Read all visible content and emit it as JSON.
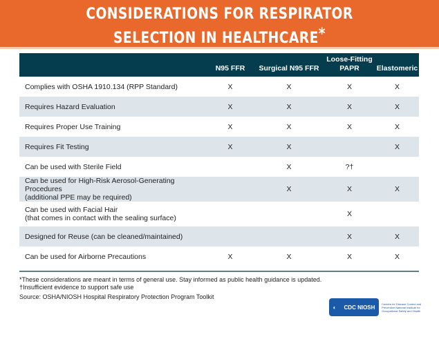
{
  "title": {
    "line1": "CONSIDERATIONS FOR RESPIRATOR",
    "line2": "SELECTION IN HEALTHCARE",
    "mark": "*"
  },
  "columns": [
    "",
    "N95 FFR",
    "Surgical N95 FFR",
    "Loose-Fitting PAPR",
    "Elastomeric"
  ],
  "rows": [
    {
      "label": "Complies with OSHA 1910.134 (RPP Standard)",
      "values": [
        "X",
        "X",
        "X",
        "X"
      ]
    },
    {
      "label": "Requires Hazard Evaluation",
      "values": [
        "X",
        "X",
        "X",
        "X"
      ]
    },
    {
      "label": "Requires Proper Use Training",
      "values": [
        "X",
        "X",
        "X",
        "X"
      ]
    },
    {
      "label": "Requires Fit Testing",
      "values": [
        "X",
        "X",
        "",
        "X"
      ]
    },
    {
      "label": "Can be used with Sterile Field",
      "values": [
        "",
        "X",
        "?†",
        ""
      ]
    },
    {
      "label": "Can be used for High-Risk Aerosol-Generating Procedures",
      "label2": "(additional PPE may be required)",
      "values": [
        "",
        "X",
        "X",
        "X"
      ]
    },
    {
      "label": "Can be used with Facial Hair",
      "label2": "(that comes in contact with the sealing surface)",
      "values": [
        "",
        "",
        "X",
        ""
      ]
    },
    {
      "label": "Designed for Reuse (can be cleaned/maintained)",
      "values": [
        "",
        "",
        "X",
        "X"
      ]
    },
    {
      "label": "Can be used for Airborne Precautions",
      "values": [
        "X",
        "X",
        "X",
        "X"
      ]
    }
  ],
  "footnotes": {
    "note1": "*These considerations are meant in terms of general use. Stay informed as public health guidance is updated.",
    "note2": "†Insufficient evidence to support safe use",
    "source": "Source: OSHA/NIOSH Hospital Respiratory Protection Program Toolkit"
  },
  "logo": {
    "text": "CDC NIOSH",
    "caption": "Centers for Disease Control and Prevention National Institute for Occupational Safety and Health"
  },
  "colors": {
    "banner": "#e9692c",
    "header": "#053d4f",
    "alt_row": "#dde4ea"
  }
}
